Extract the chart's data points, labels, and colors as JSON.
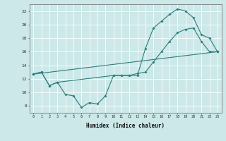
{
  "bg_color": "#cce8e8",
  "grid_color": "#ffffff",
  "line_color": "#2e7d7d",
  "line1_x": [
    0,
    1,
    2,
    3,
    4,
    5,
    6,
    7,
    8,
    9,
    10,
    11,
    12,
    13,
    14,
    15,
    16,
    17,
    18,
    19,
    20,
    21,
    22,
    23
  ],
  "line1_y": [
    12.7,
    13.0,
    11.0,
    11.5,
    9.7,
    9.5,
    7.8,
    8.5,
    8.3,
    9.5,
    12.5,
    12.5,
    12.5,
    12.5,
    16.5,
    19.5,
    20.5,
    21.5,
    22.3,
    22.0,
    21.0,
    18.5,
    18.0,
    16.0
  ],
  "line2_x": [
    0,
    23
  ],
  "line2_y": [
    12.7,
    16.0
  ],
  "line3_x": [
    0,
    1,
    2,
    3,
    10,
    11,
    12,
    13,
    14,
    15,
    16,
    17,
    18,
    19,
    20,
    21,
    22,
    23
  ],
  "line3_y": [
    12.7,
    13.0,
    11.0,
    11.5,
    12.5,
    12.5,
    12.5,
    12.8,
    13.0,
    14.5,
    16.0,
    17.5,
    18.8,
    19.3,
    19.5,
    17.5,
    16.0,
    16.0
  ],
  "xlabel": "Humidex (Indice chaleur)",
  "xlim": [
    -0.5,
    23.5
  ],
  "ylim": [
    7,
    23
  ],
  "xticks": [
    0,
    1,
    2,
    3,
    4,
    5,
    6,
    7,
    8,
    9,
    10,
    11,
    12,
    13,
    14,
    15,
    16,
    17,
    18,
    19,
    20,
    21,
    22,
    23
  ],
  "yticks": [
    8,
    10,
    12,
    14,
    16,
    18,
    20,
    22
  ],
  "fig_width": 3.2,
  "fig_height": 2.0,
  "dpi": 100
}
